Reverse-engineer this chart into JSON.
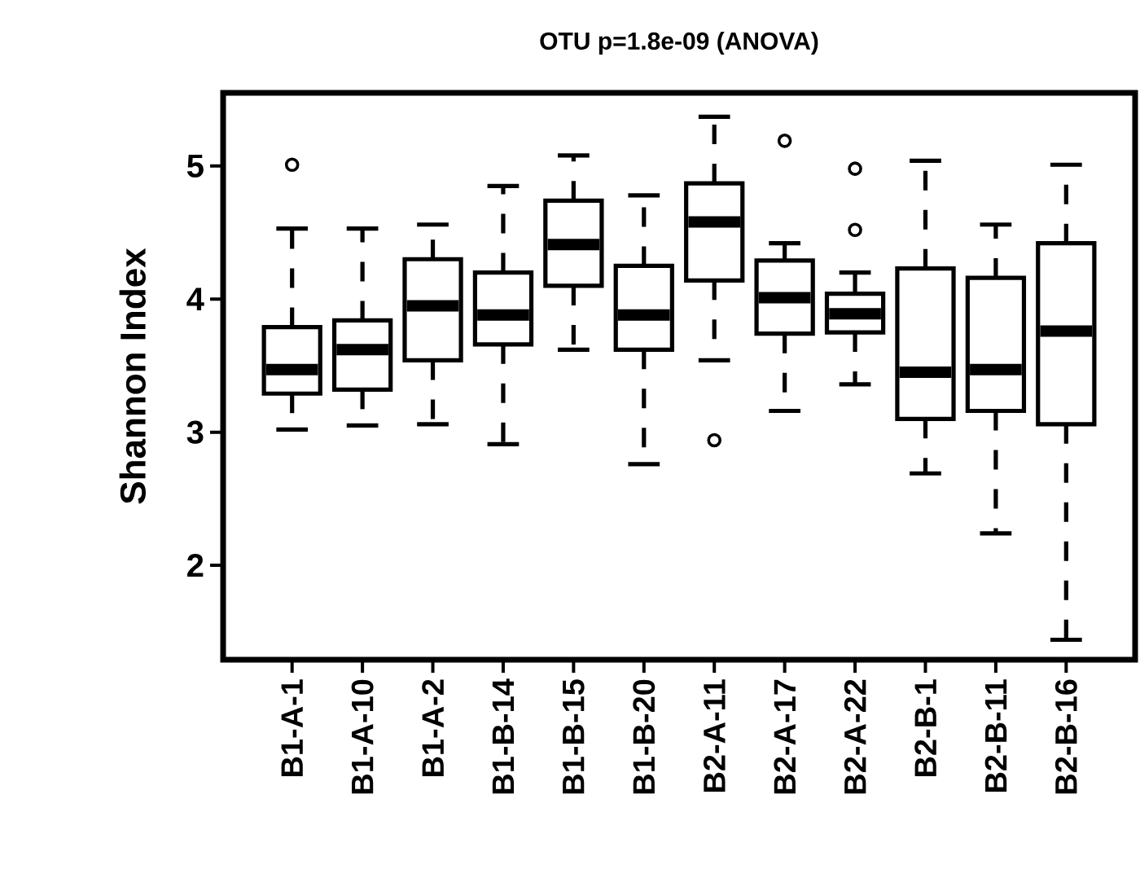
{
  "chart_data": {
    "type": "box",
    "title": "OTU p=1.8e-09 (ANOVA)",
    "ylabel": "Shannon Index",
    "categories": [
      "B1-A-1",
      "B1-A-10",
      "B1-A-2",
      "B1-B-14",
      "B1-B-15",
      "B1-B-20",
      "B2-A-11",
      "B2-A-17",
      "B2-A-22",
      "B2-B-1",
      "B2-B-11",
      "B2-B-16"
    ],
    "boxes": [
      {
        "low": 3.02,
        "q1": 3.29,
        "median": 3.47,
        "q3": 3.79,
        "high": 4.53,
        "outliers": [
          5.01
        ]
      },
      {
        "low": 3.05,
        "q1": 3.32,
        "median": 3.62,
        "q3": 3.84,
        "high": 4.53
      },
      {
        "low": 3.06,
        "q1": 3.54,
        "median": 3.95,
        "q3": 4.3,
        "high": 4.56
      },
      {
        "low": 2.91,
        "q1": 3.66,
        "median": 3.88,
        "q3": 4.2,
        "high": 4.85
      },
      {
        "low": 3.62,
        "q1": 4.1,
        "median": 4.41,
        "q3": 4.74,
        "high": 5.08
      },
      {
        "low": 2.76,
        "q1": 3.62,
        "median": 3.88,
        "q3": 4.25,
        "high": 4.78
      },
      {
        "low": 3.54,
        "q1": 4.14,
        "median": 4.58,
        "q3": 4.87,
        "high": 5.37,
        "outliers": [
          2.94
        ]
      },
      {
        "low": 3.16,
        "q1": 3.74,
        "median": 4.01,
        "q3": 4.29,
        "high": 4.42,
        "outliers": [
          5.19
        ]
      },
      {
        "low": 3.36,
        "q1": 3.75,
        "median": 3.89,
        "q3": 4.04,
        "high": 4.2,
        "outliers": [
          4.98,
          4.52
        ]
      },
      {
        "low": 2.69,
        "q1": 3.1,
        "median": 3.45,
        "q3": 4.23,
        "high": 5.04
      },
      {
        "low": 2.24,
        "q1": 3.16,
        "median": 3.47,
        "q3": 4.16,
        "high": 4.56
      },
      {
        "low": 1.44,
        "q1": 3.06,
        "median": 3.76,
        "q3": 4.42,
        "high": 5.01
      }
    ],
    "ylim": [
      1.29,
      5.55
    ],
    "yticks": [
      2,
      3,
      4,
      5
    ]
  }
}
